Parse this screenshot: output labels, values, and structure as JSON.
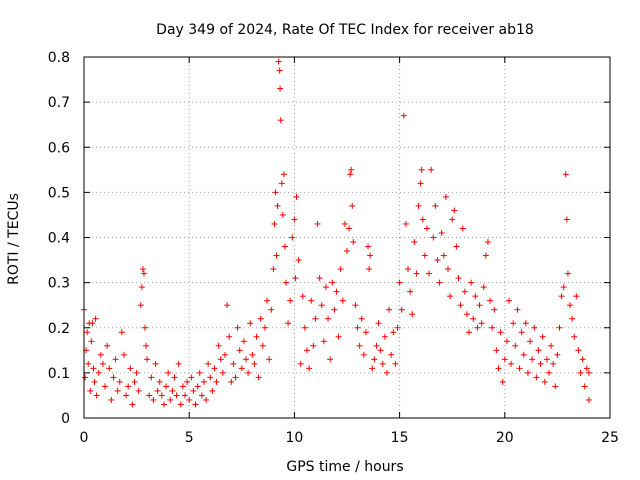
{
  "chart_data": {
    "type": "scatter",
    "title": "Day 349 of 2024, Rate Of TEC Index for receiver ab18",
    "xlabel": "GPS time / hours",
    "ylabel": "ROTI / TECUs",
    "xlim": [
      0,
      25
    ],
    "ylim": [
      0,
      0.8
    ],
    "x_ticks": [
      0,
      5,
      10,
      15,
      20,
      25
    ],
    "y_ticks": [
      0,
      0.1,
      0.2,
      0.3,
      0.4,
      0.5,
      0.6,
      0.7,
      0.8
    ],
    "x_tick_labels": [
      "0",
      "5",
      "10",
      "15",
      "20",
      "25"
    ],
    "y_tick_labels": [
      "0",
      "0.1",
      "0.2",
      "0.3",
      "0.4",
      "0.5",
      "0.6",
      "0.7",
      "0.8"
    ],
    "grid": true,
    "marker": "+",
    "series": [
      {
        "color": "#ff0000",
        "points": [
          [
            0.0,
            0.24
          ],
          [
            0.05,
            0.09
          ],
          [
            0.1,
            0.15
          ],
          [
            0.15,
            0.19
          ],
          [
            0.2,
            0.12
          ],
          [
            0.25,
            0.21
          ],
          [
            0.3,
            0.06
          ],
          [
            0.35,
            0.17
          ],
          [
            0.4,
            0.21
          ],
          [
            0.45,
            0.11
          ],
          [
            0.5,
            0.08
          ],
          [
            0.55,
            0.22
          ],
          [
            0.6,
            0.05
          ],
          [
            0.7,
            0.1
          ],
          [
            0.8,
            0.14
          ],
          [
            0.9,
            0.12
          ],
          [
            1.0,
            0.07
          ],
          [
            1.1,
            0.16
          ],
          [
            1.2,
            0.11
          ],
          [
            1.3,
            0.04
          ],
          [
            1.4,
            0.09
          ],
          [
            1.5,
            0.13
          ],
          [
            1.6,
            0.06
          ],
          [
            1.7,
            0.08
          ],
          [
            1.8,
            0.19
          ],
          [
            1.9,
            0.14
          ],
          [
            2.0,
            0.05
          ],
          [
            2.1,
            0.07
          ],
          [
            2.2,
            0.11
          ],
          [
            2.3,
            0.03
          ],
          [
            2.4,
            0.08
          ],
          [
            2.5,
            0.1
          ],
          [
            2.6,
            0.06
          ],
          [
            2.7,
            0.25
          ],
          [
            2.75,
            0.29
          ],
          [
            2.8,
            0.33
          ],
          [
            2.85,
            0.32
          ],
          [
            2.9,
            0.2
          ],
          [
            2.95,
            0.16
          ],
          [
            3.0,
            0.13
          ],
          [
            3.1,
            0.05
          ],
          [
            3.2,
            0.09
          ],
          [
            3.3,
            0.04
          ],
          [
            3.4,
            0.12
          ],
          [
            3.5,
            0.06
          ],
          [
            3.6,
            0.08
          ],
          [
            3.7,
            0.05
          ],
          [
            3.8,
            0.03
          ],
          [
            3.9,
            0.07
          ],
          [
            4.0,
            0.1
          ],
          [
            4.1,
            0.04
          ],
          [
            4.2,
            0.06
          ],
          [
            4.3,
            0.09
          ],
          [
            4.4,
            0.05
          ],
          [
            4.5,
            0.12
          ],
          [
            4.6,
            0.03
          ],
          [
            4.7,
            0.07
          ],
          [
            4.8,
            0.05
          ],
          [
            4.9,
            0.08
          ],
          [
            5.0,
            0.04
          ],
          [
            5.1,
            0.09
          ],
          [
            5.2,
            0.06
          ],
          [
            5.3,
            0.03
          ],
          [
            5.4,
            0.07
          ],
          [
            5.5,
            0.1
          ],
          [
            5.6,
            0.05
          ],
          [
            5.7,
            0.08
          ],
          [
            5.8,
            0.04
          ],
          [
            5.9,
            0.12
          ],
          [
            6.0,
            0.09
          ],
          [
            6.1,
            0.06
          ],
          [
            6.2,
            0.11
          ],
          [
            6.3,
            0.08
          ],
          [
            6.4,
            0.16
          ],
          [
            6.5,
            0.13
          ],
          [
            6.6,
            0.1
          ],
          [
            6.7,
            0.14
          ],
          [
            6.8,
            0.25
          ],
          [
            6.9,
            0.18
          ],
          [
            7.0,
            0.08
          ],
          [
            7.1,
            0.12
          ],
          [
            7.2,
            0.09
          ],
          [
            7.3,
            0.2
          ],
          [
            7.4,
            0.15
          ],
          [
            7.5,
            0.11
          ],
          [
            7.6,
            0.17
          ],
          [
            7.7,
            0.13
          ],
          [
            7.8,
            0.1
          ],
          [
            7.9,
            0.21
          ],
          [
            8.0,
            0.14
          ],
          [
            8.1,
            0.12
          ],
          [
            8.2,
            0.18
          ],
          [
            8.3,
            0.09
          ],
          [
            8.4,
            0.22
          ],
          [
            8.5,
            0.16
          ],
          [
            8.6,
            0.2
          ],
          [
            8.7,
            0.26
          ],
          [
            8.8,
            0.13
          ],
          [
            8.9,
            0.24
          ],
          [
            9.0,
            0.33
          ],
          [
            9.05,
            0.43
          ],
          [
            9.1,
            0.5
          ],
          [
            9.15,
            0.36
          ],
          [
            9.2,
            0.47
          ],
          [
            9.25,
            0.79
          ],
          [
            9.3,
            0.77
          ],
          [
            9.32,
            0.73
          ],
          [
            9.35,
            0.66
          ],
          [
            9.4,
            0.52
          ],
          [
            9.45,
            0.45
          ],
          [
            9.5,
            0.54
          ],
          [
            9.55,
            0.38
          ],
          [
            9.6,
            0.3
          ],
          [
            9.7,
            0.21
          ],
          [
            9.8,
            0.26
          ],
          [
            9.9,
            0.4
          ],
          [
            10.0,
            0.44
          ],
          [
            10.05,
            0.31
          ],
          [
            10.1,
            0.49
          ],
          [
            10.2,
            0.35
          ],
          [
            10.3,
            0.12
          ],
          [
            10.4,
            0.27
          ],
          [
            10.5,
            0.2
          ],
          [
            10.6,
            0.15
          ],
          [
            10.7,
            0.11
          ],
          [
            10.8,
            0.26
          ],
          [
            10.9,
            0.16
          ],
          [
            11.0,
            0.22
          ],
          [
            11.1,
            0.43
          ],
          [
            11.2,
            0.31
          ],
          [
            11.3,
            0.25
          ],
          [
            11.4,
            0.17
          ],
          [
            11.5,
            0.29
          ],
          [
            11.6,
            0.22
          ],
          [
            11.7,
            0.13
          ],
          [
            11.8,
            0.3
          ],
          [
            11.9,
            0.24
          ],
          [
            12.0,
            0.28
          ],
          [
            12.1,
            0.18
          ],
          [
            12.2,
            0.33
          ],
          [
            12.3,
            0.26
          ],
          [
            12.4,
            0.43
          ],
          [
            12.5,
            0.37
          ],
          [
            12.6,
            0.42
          ],
          [
            12.65,
            0.54
          ],
          [
            12.7,
            0.55
          ],
          [
            12.75,
            0.47
          ],
          [
            12.8,
            0.39
          ],
          [
            12.9,
            0.25
          ],
          [
            13.0,
            0.2
          ],
          [
            13.1,
            0.16
          ],
          [
            13.2,
            0.22
          ],
          [
            13.3,
            0.14
          ],
          [
            13.4,
            0.19
          ],
          [
            13.5,
            0.38
          ],
          [
            13.55,
            0.33
          ],
          [
            13.6,
            0.36
          ],
          [
            13.7,
            0.11
          ],
          [
            13.8,
            0.13
          ],
          [
            13.9,
            0.16
          ],
          [
            14.0,
            0.21
          ],
          [
            14.1,
            0.15
          ],
          [
            14.2,
            0.12
          ],
          [
            14.3,
            0.18
          ],
          [
            14.4,
            0.1
          ],
          [
            14.5,
            0.24
          ],
          [
            14.6,
            0.14
          ],
          [
            14.7,
            0.19
          ],
          [
            14.8,
            0.12
          ],
          [
            14.9,
            0.2
          ],
          [
            15.0,
            0.3
          ],
          [
            15.1,
            0.24
          ],
          [
            15.2,
            0.67
          ],
          [
            15.3,
            0.43
          ],
          [
            15.4,
            0.33
          ],
          [
            15.5,
            0.28
          ],
          [
            15.6,
            0.23
          ],
          [
            15.7,
            0.39
          ],
          [
            15.8,
            0.32
          ],
          [
            15.9,
            0.47
          ],
          [
            16.0,
            0.52
          ],
          [
            16.05,
            0.55
          ],
          [
            16.1,
            0.44
          ],
          [
            16.2,
            0.36
          ],
          [
            16.3,
            0.42
          ],
          [
            16.4,
            0.32
          ],
          [
            16.5,
            0.55
          ],
          [
            16.6,
            0.4
          ],
          [
            16.7,
            0.47
          ],
          [
            16.8,
            0.35
          ],
          [
            16.9,
            0.3
          ],
          [
            17.0,
            0.41
          ],
          [
            17.1,
            0.36
          ],
          [
            17.2,
            0.49
          ],
          [
            17.3,
            0.33
          ],
          [
            17.4,
            0.27
          ],
          [
            17.5,
            0.44
          ],
          [
            17.6,
            0.46
          ],
          [
            17.7,
            0.38
          ],
          [
            17.8,
            0.31
          ],
          [
            17.9,
            0.25
          ],
          [
            18.0,
            0.42
          ],
          [
            18.1,
            0.28
          ],
          [
            18.2,
            0.23
          ],
          [
            18.3,
            0.19
          ],
          [
            18.4,
            0.3
          ],
          [
            18.5,
            0.22
          ],
          [
            18.6,
            0.27
          ],
          [
            18.7,
            0.2
          ],
          [
            18.8,
            0.25
          ],
          [
            18.9,
            0.21
          ],
          [
            19.0,
            0.29
          ],
          [
            19.1,
            0.36
          ],
          [
            19.2,
            0.39
          ],
          [
            19.3,
            0.26
          ],
          [
            19.4,
            0.2
          ],
          [
            19.5,
            0.24
          ],
          [
            19.6,
            0.15
          ],
          [
            19.7,
            0.11
          ],
          [
            19.8,
            0.19
          ],
          [
            19.9,
            0.08
          ],
          [
            20.0,
            0.13
          ],
          [
            20.1,
            0.17
          ],
          [
            20.2,
            0.26
          ],
          [
            20.3,
            0.12
          ],
          [
            20.4,
            0.21
          ],
          [
            20.5,
            0.16
          ],
          [
            20.6,
            0.24
          ],
          [
            20.7,
            0.11
          ],
          [
            20.8,
            0.19
          ],
          [
            20.9,
            0.14
          ],
          [
            21.0,
            0.21
          ],
          [
            21.1,
            0.1
          ],
          [
            21.2,
            0.17
          ],
          [
            21.3,
            0.13
          ],
          [
            21.4,
            0.2
          ],
          [
            21.5,
            0.09
          ],
          [
            21.6,
            0.15
          ],
          [
            21.7,
            0.12
          ],
          [
            21.8,
            0.18
          ],
          [
            21.9,
            0.08
          ],
          [
            22.0,
            0.13
          ],
          [
            22.1,
            0.1
          ],
          [
            22.2,
            0.16
          ],
          [
            22.3,
            0.12
          ],
          [
            22.4,
            0.07
          ],
          [
            22.5,
            0.14
          ],
          [
            22.6,
            0.2
          ],
          [
            22.7,
            0.27
          ],
          [
            22.8,
            0.29
          ],
          [
            22.9,
            0.54
          ],
          [
            22.95,
            0.44
          ],
          [
            23.0,
            0.32
          ],
          [
            23.1,
            0.25
          ],
          [
            23.2,
            0.22
          ],
          [
            23.3,
            0.18
          ],
          [
            23.4,
            0.27
          ],
          [
            23.5,
            0.15
          ],
          [
            23.6,
            0.1
          ],
          [
            23.7,
            0.13
          ],
          [
            23.8,
            0.07
          ],
          [
            23.9,
            0.11
          ],
          [
            24.0,
            0.04
          ],
          [
            24.0,
            0.1
          ]
        ]
      }
    ]
  }
}
